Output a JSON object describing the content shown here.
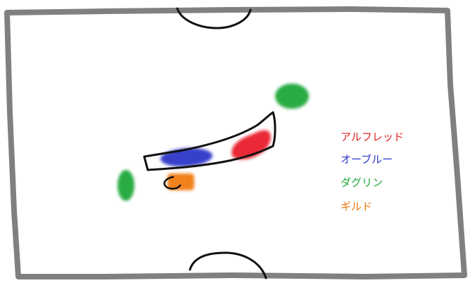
{
  "legend": [
    {
      "label": "アルフレッド",
      "color": "#e02020"
    },
    {
      "label": "オーブルー",
      "color": "#2c37c8"
    },
    {
      "label": "ダグリン",
      "color": "#1fa83a"
    },
    {
      "label": "ギルド",
      "color": "#f07a12"
    }
  ],
  "colors": {
    "field_border": "#808080",
    "ink": "#111111",
    "red_blob": "#e8202a",
    "blue_blob": "#2c37c8",
    "green_blob": "#1fa83a",
    "orange_blob": "#f07a12"
  }
}
